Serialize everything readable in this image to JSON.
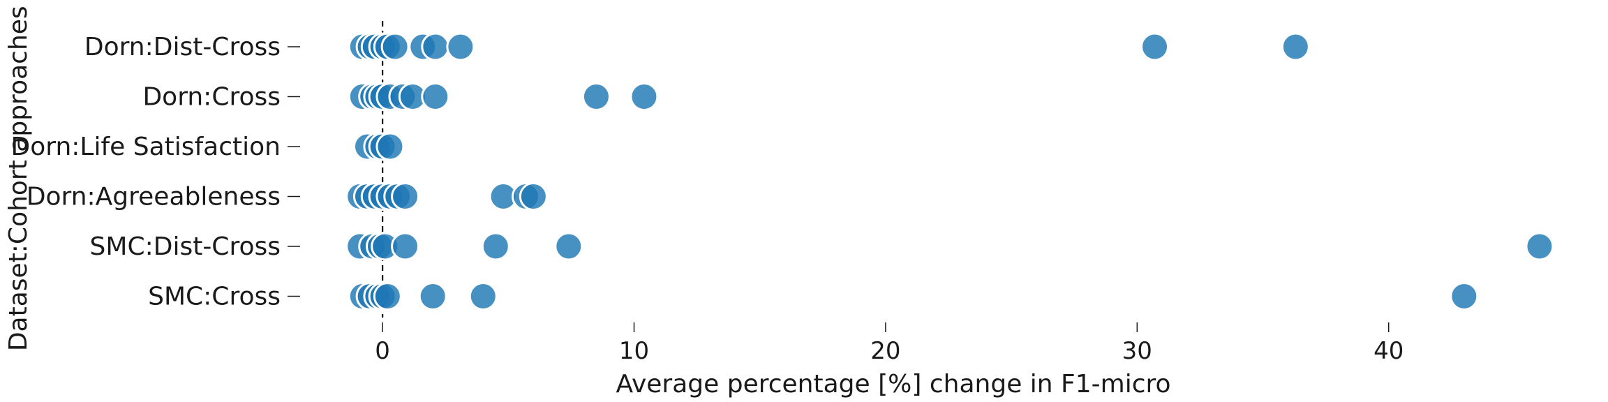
{
  "chart_data": {
    "type": "scatter",
    "xlabel": "Average percentage [%] change in F1-micro",
    "ylabel": "Dataset:Cohort approaches",
    "xlim": [
      -3.0,
      47.5
    ],
    "xticks": [
      0,
      10,
      20,
      30,
      40
    ],
    "zero_line": 0,
    "grid": false,
    "point_color": "#1f77b4",
    "categories": [
      "Dorn:Dist-Cross",
      "Dorn:Cross",
      "Dorn:Life Satisfaction",
      "Dorn:Agreeableness",
      "SMC:Dist-Cross",
      "SMC:Cross"
    ],
    "series": [
      {
        "category": "Dorn:Dist-Cross",
        "x": [
          -0.8,
          -0.5,
          -0.3,
          0.0,
          0.2,
          0.5,
          1.6,
          2.1,
          3.1,
          30.7,
          36.3
        ]
      },
      {
        "category": "Dorn:Cross",
        "x": [
          -0.8,
          -0.4,
          -0.2,
          0.0,
          0.3,
          0.8,
          1.2,
          2.1,
          8.5,
          10.4
        ]
      },
      {
        "category": "Dorn:Life Satisfaction",
        "x": [
          -0.6,
          -0.2,
          0.0,
          0.3
        ]
      },
      {
        "category": "Dorn:Agreeableness",
        "x": [
          -0.9,
          -0.6,
          -0.3,
          0.0,
          0.3,
          0.6,
          0.9,
          4.8,
          5.7,
          6.0
        ]
      },
      {
        "category": "SMC:Dist-Cross",
        "x": [
          -0.9,
          -0.4,
          -0.1,
          0.1,
          0.9,
          4.5,
          7.4,
          46.0
        ]
      },
      {
        "category": "SMC:Cross",
        "x": [
          -0.8,
          -0.5,
          -0.2,
          0.0,
          0.2,
          2.0,
          4.0,
          43.0
        ]
      }
    ]
  }
}
